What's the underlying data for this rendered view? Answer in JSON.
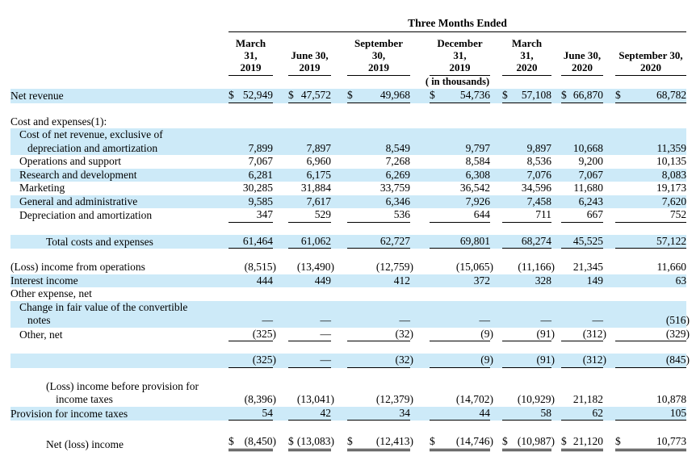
{
  "colors": {
    "highlight": "#cdeaf8",
    "rule": "#000000",
    "text": "#000000"
  },
  "table": {
    "title": "Three Months Ended",
    "units_note": "( in thousands)",
    "columns": [
      "March 31,\n2019",
      "June 30,\n2019",
      "September 30,\n2019",
      "December 31,\n2019",
      "March\n31,\n2020",
      "June 30,\n2020",
      "September 30,\n2020"
    ],
    "rows": [
      {
        "type": "data",
        "label": "Net revenue",
        "indent": 0,
        "highlight": true,
        "dollar": true,
        "underline": "single",
        "values": [
          "52,949",
          "47,572",
          "49,968",
          "54,736",
          "57,108",
          "66,870",
          "68,782"
        ]
      },
      {
        "type": "spacer"
      },
      {
        "type": "data",
        "label": "Cost and expenses(1):",
        "indent": 0,
        "highlight": false
      },
      {
        "type": "data",
        "label": "Cost of net revenue, exclusive of\ndepreciation and amortization",
        "indent": 1,
        "highlight": true,
        "values": [
          "7,899",
          "7,897",
          "8,549",
          "9,797",
          "9,897",
          "10,668",
          "11,359"
        ]
      },
      {
        "type": "data",
        "label": "Operations and support",
        "indent": 1,
        "highlight": false,
        "values": [
          "7,067",
          "6,960",
          "7,268",
          "8,584",
          "8,536",
          "9,200",
          "10,135"
        ]
      },
      {
        "type": "data",
        "label": "Research and development",
        "indent": 1,
        "highlight": true,
        "values": [
          "6,281",
          "6,175",
          "6,269",
          "6,308",
          "7,076",
          "7,067",
          "8,083"
        ]
      },
      {
        "type": "data",
        "label": "Marketing",
        "indent": 1,
        "highlight": false,
        "values": [
          "30,285",
          "31,884",
          "33,759",
          "36,542",
          "34,596",
          "11,680",
          "19,173"
        ]
      },
      {
        "type": "data",
        "label": "General and administrative",
        "indent": 1,
        "highlight": true,
        "values": [
          "9,585",
          "7,617",
          "6,346",
          "7,926",
          "7,458",
          "6,243",
          "7,620"
        ]
      },
      {
        "type": "data",
        "label": "Depreciation and amortization",
        "indent": 1,
        "highlight": false,
        "underline": "single",
        "values": [
          "347",
          "529",
          "536",
          "644",
          "711",
          "667",
          "752"
        ]
      },
      {
        "type": "spacer"
      },
      {
        "type": "data",
        "label": "Total costs and expenses",
        "indent": 2,
        "highlight": true,
        "underline": "single",
        "values": [
          "61,464",
          "61,062",
          "62,727",
          "69,801",
          "68,274",
          "45,525",
          "57,122"
        ]
      },
      {
        "type": "spacer"
      },
      {
        "type": "data",
        "label": "(Loss) income from operations",
        "indent": 0,
        "highlight": false,
        "values": [
          "(8,515)",
          "(13,490)",
          "(12,759)",
          "(15,065)",
          "(11,166)",
          "21,345",
          "11,660"
        ]
      },
      {
        "type": "data",
        "label": "Interest income",
        "indent": 0,
        "highlight": true,
        "values": [
          "444",
          "449",
          "412",
          "372",
          "328",
          "149",
          "63"
        ]
      },
      {
        "type": "data",
        "label": "Other expense, net",
        "indent": 0,
        "highlight": false
      },
      {
        "type": "data",
        "label": "Change in fair value of the convertible\nnotes",
        "indent": 1,
        "highlight": true,
        "values": [
          "—",
          "—",
          "—",
          "—",
          "—",
          "—",
          "(516)"
        ]
      },
      {
        "type": "data",
        "label": "Other, net",
        "indent": 1,
        "highlight": false,
        "underline": "single",
        "values": [
          "(325)",
          "—",
          "(32)",
          "(9)",
          "(91)",
          "(312)",
          "(329)"
        ]
      },
      {
        "type": "spacer"
      },
      {
        "type": "data",
        "label": "",
        "indent": 0,
        "highlight": true,
        "underline": "single",
        "values": [
          "(325)",
          "—",
          "(32)",
          "(9)",
          "(91)",
          "(312)",
          "(845)"
        ]
      },
      {
        "type": "spacer"
      },
      {
        "type": "data",
        "label": "(Loss) income before provision for\nincome taxes",
        "indent": 2,
        "highlight": false,
        "values": [
          "(8,396)",
          "(13,041)",
          "(12,379)",
          "(14,702)",
          "(10,929)",
          "21,182",
          "10,878"
        ]
      },
      {
        "type": "data",
        "label": "Provision for income taxes",
        "indent": 0,
        "highlight": true,
        "underline": "single",
        "values": [
          "54",
          "42",
          "34",
          "44",
          "58",
          "62",
          "105"
        ]
      },
      {
        "type": "spacer"
      },
      {
        "type": "data",
        "label": "Net (loss) income",
        "indent": 2,
        "highlight": false,
        "dollar": true,
        "underline": "double",
        "netrow": true,
        "values": [
          "(8,450)",
          "(13,083)",
          "(12,413)",
          "(14,746)",
          "(10,987)",
          "21,120",
          "10,773"
        ]
      }
    ]
  }
}
